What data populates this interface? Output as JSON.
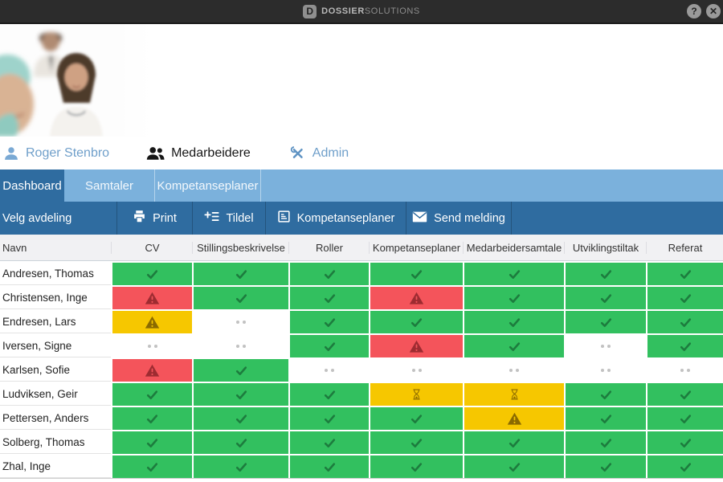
{
  "topbar": {
    "logo_letter": "D",
    "brand_bold": "DOSSIER",
    "brand_light": "SOLUTIONS",
    "help_glyph": "?",
    "close_glyph": "✕"
  },
  "nav": {
    "user": "Roger Stenbro",
    "employees": "Medarbeidere",
    "admin": "Admin"
  },
  "tabs": [
    {
      "label": "Dashboard",
      "active": true
    },
    {
      "label": "Samtaler",
      "active": false
    },
    {
      "label": "Kompetanseplaner",
      "active": false
    }
  ],
  "toolbar": {
    "department_selector": "Velg avdeling",
    "buttons": [
      {
        "label": "Print",
        "icon": "printer-icon"
      },
      {
        "label": "Tildel",
        "icon": "assign-plus-list-icon"
      },
      {
        "label": "Kompetanseplaner",
        "icon": "competence-plan-icon"
      },
      {
        "label": "Send melding",
        "icon": "envelope-icon"
      }
    ]
  },
  "table": {
    "columns": [
      "Navn",
      "CV",
      "Stillingsbeskrivelse",
      "Roller",
      "Kompetanseplaner",
      "Medarbeidersamtale",
      "Utviklingstiltak",
      "Referat"
    ],
    "rows": [
      {
        "name": "Andresen, Thomas",
        "statuses": [
          "ok",
          "ok",
          "ok",
          "ok",
          "ok",
          "ok",
          "ok"
        ]
      },
      {
        "name": "Christensen, Inge",
        "statuses": [
          "alert",
          "ok",
          "ok",
          "alert",
          "ok",
          "ok",
          "ok"
        ]
      },
      {
        "name": "Endresen, Lars",
        "statuses": [
          "warn",
          "none",
          "ok",
          "ok",
          "ok",
          "ok",
          "ok"
        ]
      },
      {
        "name": "Iversen, Signe",
        "statuses": [
          "none",
          "none",
          "ok",
          "alert",
          "ok",
          "none",
          "ok"
        ]
      },
      {
        "name": "Karlsen, Sofie",
        "statuses": [
          "alert",
          "ok",
          "none",
          "none",
          "none",
          "none",
          "none"
        ]
      },
      {
        "name": "Ludviksen, Geir",
        "statuses": [
          "ok",
          "ok",
          "ok",
          "pending",
          "pending",
          "ok",
          "ok"
        ]
      },
      {
        "name": "Pettersen, Anders",
        "statuses": [
          "ok",
          "ok",
          "ok",
          "ok",
          "warn",
          "ok",
          "ok"
        ]
      },
      {
        "name": "Solberg, Thomas",
        "statuses": [
          "ok",
          "ok",
          "ok",
          "ok",
          "ok",
          "ok",
          "ok"
        ]
      },
      {
        "name": "Zhal, Inge",
        "statuses": [
          "ok",
          "ok",
          "ok",
          "ok",
          "ok",
          "ok",
          "ok"
        ]
      }
    ]
  },
  "status_styles": {
    "ok": {
      "bg": "#32c05f",
      "icon": "#1d7c3e"
    },
    "alert": {
      "bg": "#f4545b",
      "icon": "#9e2b31"
    },
    "warn": {
      "bg": "#f6c700",
      "icon": "#8a6a00"
    },
    "pending": {
      "bg": "#f6c700",
      "icon": "#8a6a00"
    },
    "none": {
      "bg": "#ffffff",
      "icon": "#c2c2c2"
    }
  },
  "colors": {
    "topbar_bg": "#2c2c2c",
    "tabbar_bg": "#7bb1dc",
    "active_tab_bg": "#2f6ca0",
    "toolbar_bg": "#2f6ca0",
    "nav_link_blue": "#6f9fca"
  }
}
